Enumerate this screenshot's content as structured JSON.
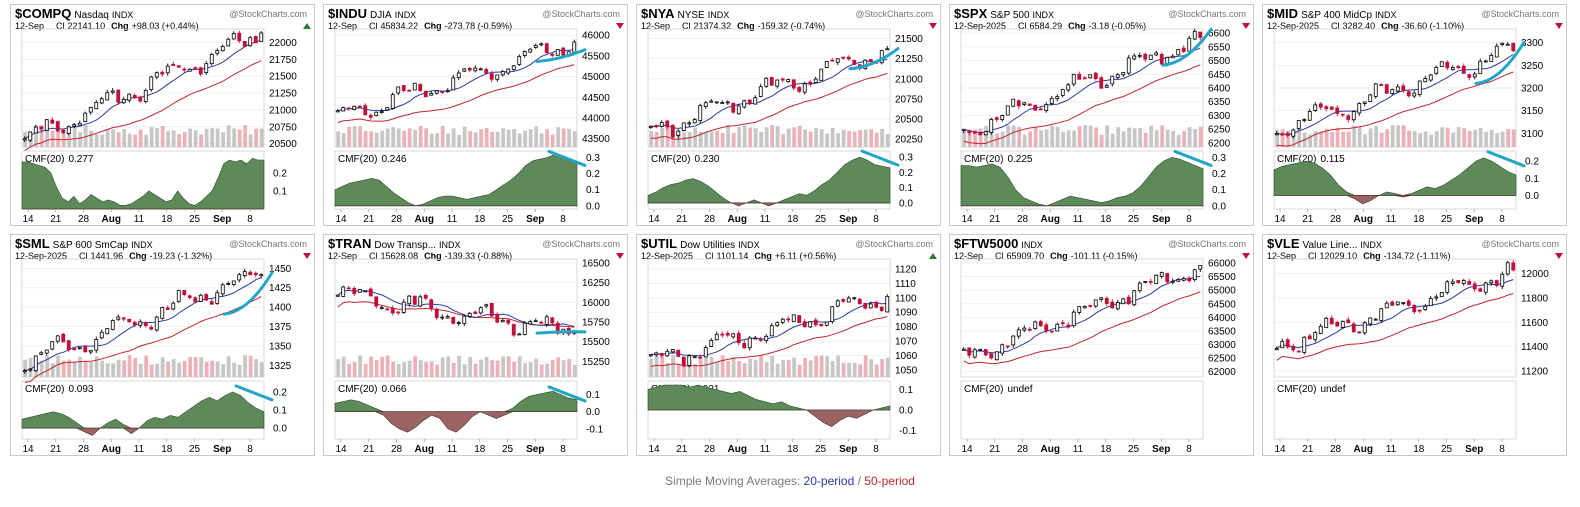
{
  "footer": {
    "prefix": "Simple Moving Averages: ",
    "sma20": "20-period",
    "sep": " / ",
    "sma50": "50-period"
  },
  "colors": {
    "up": "#000000",
    "down": "#c0103a",
    "sma20": "#2b3aa6",
    "sma50": "#c1272d",
    "cmf_pos": "#5e8a5a",
    "cmf_neg": "#9a6464",
    "volume_up": "#bdbdbd",
    "volume_down": "#e8a5ad",
    "annotation": "#22a6c8",
    "marker_down": "#c0103a",
    "marker_up": "#2e7d32"
  },
  "chart_data": [
    {
      "type": "candlestick",
      "symbol": "$COMPQ",
      "name": "Nasdaq",
      "exchange": "INDX",
      "watermark": "@StockCharts.com",
      "date": "12-Sep",
      "close_label": "Cl",
      "close": "22141.10",
      "chg_label": "Chg",
      "chg": "+98.03 (+0.44%)",
      "direction": "up",
      "price_ticks": [
        22000,
        21750,
        21500,
        21250,
        21000,
        20750,
        20500
      ],
      "price_tick_labels": [
        "22000",
        "21750",
        "21500",
        "21250",
        "21000",
        "20750",
        "20500"
      ],
      "ylim": [
        20450,
        22200
      ],
      "x_labels": [
        "14",
        "21",
        "28",
        "Aug",
        "11",
        "18",
        "25",
        "Sep",
        "8"
      ],
      "cmf_label": "CMF(20)",
      "cmf_value": "0.277",
      "cmf_ticks": [
        "0.2",
        "0.1"
      ],
      "cmf_tick_values": [
        0.2,
        0.1
      ],
      "cmf_ylim": [
        0,
        0.32
      ],
      "cmf_series": [
        0.26,
        0.26,
        0.25,
        0.24,
        0.23,
        0.2,
        0.12,
        0.06,
        0.04,
        0.07,
        0.03,
        0.05,
        0.08,
        0.06,
        0.04,
        0.05,
        0.04,
        0.02,
        0.02,
        0.03,
        0.05,
        0.07,
        0.1,
        0.08,
        0.06,
        0.04,
        0.05,
        0.1,
        0.06,
        0.03,
        0.02,
        0.04,
        0.07,
        0.1,
        0.17,
        0.25,
        0.27,
        0.26,
        0.27,
        0.25,
        0.28,
        0.27,
        0.27
      ],
      "price_start": 20550,
      "price_end": 22141,
      "has_annotation": false,
      "show_volume": true
    },
    {
      "type": "candlestick",
      "symbol": "$INDU",
      "name": "DJIA",
      "exchange": "INDX",
      "watermark": "@StockCharts.com",
      "date": "12-Sep",
      "close_label": "Cl",
      "close": "45834.22",
      "chg_label": "Chg",
      "chg": "-273.78 (-0.59%)",
      "direction": "down",
      "price_ticks": [
        46000,
        45500,
        45000,
        44500,
        44000,
        43500
      ],
      "price_tick_labels": [
        "46000",
        "45500",
        "45000",
        "44500",
        "44000",
        "43500"
      ],
      "ylim": [
        43300,
        46150
      ],
      "x_labels": [
        "14",
        "21",
        "28",
        "Aug",
        "11",
        "18",
        "25",
        "Sep",
        "8"
      ],
      "cmf_label": "CMF(20)",
      "cmf_value": "0.246",
      "cmf_ticks": [
        "0.3",
        "0.2",
        "0.1",
        "0.0"
      ],
      "cmf_tick_values": [
        0.3,
        0.2,
        0.1,
        0.0
      ],
      "cmf_ylim": [
        -0.02,
        0.34
      ],
      "cmf_series": [
        0.1,
        0.12,
        0.14,
        0.15,
        0.16,
        0.17,
        0.16,
        0.12,
        0.08,
        0.05,
        0.02,
        0.0,
        0.01,
        0.03,
        0.05,
        0.06,
        0.06,
        0.05,
        0.04,
        0.05,
        0.06,
        0.07,
        0.1,
        0.13,
        0.16,
        0.2,
        0.25,
        0.28,
        0.29,
        0.3,
        0.32,
        0.3,
        0.28,
        0.26
      ],
      "price_start": 44000,
      "price_end": 45834,
      "has_annotation": true,
      "show_volume": true
    },
    {
      "type": "candlestick",
      "symbol": "$NYA",
      "name": "NYSE",
      "exchange": "INDX",
      "watermark": "@StockCharts.com",
      "date": "12-Sep",
      "close_label": "Cl",
      "close": "21374.32",
      "chg_label": "Chg",
      "chg": "-159.32 (-0.74%)",
      "direction": "down",
      "price_ticks": [
        21500,
        21250,
        21000,
        20750,
        20500,
        20250
      ],
      "price_tick_labels": [
        "21500",
        "21250",
        "21000",
        "20750",
        "20500",
        "20250"
      ],
      "ylim": [
        20150,
        21620
      ],
      "x_labels": [
        "14",
        "21",
        "28",
        "Aug",
        "11",
        "18",
        "25",
        "Sep",
        "8"
      ],
      "cmf_label": "CMF(20)",
      "cmf_value": "0.230",
      "cmf_ticks": [
        "0.3",
        "0.2",
        "0.1",
        "0.0"
      ],
      "cmf_tick_values": [
        0.3,
        0.2,
        0.1,
        0.0
      ],
      "cmf_ylim": [
        -0.04,
        0.34
      ],
      "cmf_series": [
        0.05,
        0.07,
        0.1,
        0.12,
        0.13,
        0.15,
        0.16,
        0.14,
        0.11,
        0.07,
        0.03,
        0.0,
        -0.02,
        0.0,
        0.02,
        0.0,
        -0.02,
        0.0,
        0.02,
        0.04,
        0.06,
        0.05,
        0.08,
        0.12,
        0.15,
        0.2,
        0.25,
        0.28,
        0.3,
        0.28,
        0.25,
        0.24,
        0.23
      ],
      "price_start": 20350,
      "price_end": 21374,
      "has_annotation": true,
      "show_volume": true
    },
    {
      "type": "candlestick",
      "symbol": "$SPX",
      "name": "S&P 500",
      "exchange": "INDX",
      "watermark": "@StockCharts.com",
      "date": "12-Sep-2025",
      "close_label": "Cl",
      "close": "6584.29",
      "chg_label": "Chg",
      "chg": "-3.18 (-0.05%)",
      "direction": "down",
      "price_ticks": [
        6600,
        6550,
        6500,
        6450,
        6400,
        6350,
        6300,
        6250,
        6200
      ],
      "price_tick_labels": [
        "6600",
        "6550",
        "6500",
        "6450",
        "6400",
        "6350",
        "6300",
        "6250",
        "6200"
      ],
      "ylim": [
        6185,
        6615
      ],
      "x_labels": [
        "14",
        "21",
        "28",
        "Aug",
        "11",
        "18",
        "25",
        "Sep",
        "8"
      ],
      "cmf_label": "CMF(20)",
      "cmf_value": "0.225",
      "cmf_ticks": [
        "0.3",
        "0.2",
        "0.1",
        "0.0"
      ],
      "cmf_tick_values": [
        0.3,
        0.2,
        0.1,
        0.0
      ],
      "cmf_ylim": [
        -0.02,
        0.34
      ],
      "cmf_series": [
        0.25,
        0.25,
        0.24,
        0.25,
        0.26,
        0.24,
        0.18,
        0.1,
        0.05,
        0.03,
        0.01,
        0.0,
        0.02,
        0.04,
        0.06,
        0.05,
        0.04,
        0.03,
        0.02,
        0.03,
        0.05,
        0.06,
        0.08,
        0.12,
        0.18,
        0.24,
        0.28,
        0.3,
        0.29,
        0.27,
        0.25,
        0.23
      ],
      "price_start": 6240,
      "price_end": 6584,
      "has_annotation": true,
      "show_volume": true
    },
    {
      "type": "candlestick",
      "symbol": "$MID",
      "name": "S&P 400 MidCp",
      "exchange": "INDX",
      "watermark": "@StockCharts.com",
      "date": "12-Sep-2025",
      "close_label": "Cl",
      "close": "3282.40",
      "chg_label": "Chg",
      "chg": "-36.60 (-1.10%)",
      "direction": "down",
      "price_ticks": [
        3300,
        3250,
        3200,
        3150,
        3100
      ],
      "price_tick_labels": [
        "3300",
        "3250",
        "3200",
        "3150",
        "3100"
      ],
      "ylim": [
        3070,
        3330
      ],
      "x_labels": [
        "14",
        "21",
        "28",
        "Aug",
        "11",
        "18",
        "25",
        "Sep",
        "8"
      ],
      "cmf_label": "CMF(20)",
      "cmf_value": "0.115",
      "cmf_ticks": [
        "0.2",
        "0.1",
        "0.0"
      ],
      "cmf_tick_values": [
        0.2,
        0.1,
        0.0
      ],
      "cmf_ylim": [
        -0.08,
        0.26
      ],
      "cmf_series": [
        0.15,
        0.17,
        0.18,
        0.19,
        0.2,
        0.19,
        0.16,
        0.12,
        0.06,
        0.02,
        -0.02,
        -0.05,
        -0.03,
        0.0,
        0.02,
        0.01,
        -0.01,
        0.01,
        0.03,
        0.05,
        0.04,
        0.06,
        0.09,
        0.12,
        0.16,
        0.2,
        0.22,
        0.2,
        0.17,
        0.14,
        0.12
      ],
      "price_start": 3110,
      "price_end": 3282,
      "has_annotation": true,
      "show_volume": true
    },
    {
      "type": "candlestick",
      "symbol": "$SML",
      "name": "S&P 600 SmCap",
      "exchange": "INDX",
      "watermark": "@StockCharts.com",
      "date": "12-Sep-2025",
      "close_label": "Cl",
      "close": "1441.96",
      "chg_label": "Chg",
      "chg": "-19.23 (-1.32%)",
      "direction": "down",
      "price_ticks": [
        1450,
        1425,
        1400,
        1375,
        1350,
        1325
      ],
      "price_tick_labels": [
        "1450",
        "1425",
        "1400",
        "1375",
        "1350",
        "1325"
      ],
      "ylim": [
        1310,
        1462
      ],
      "x_labels": [
        "14",
        "21",
        "28",
        "Aug",
        "11",
        "18",
        "25",
        "Sep",
        "8"
      ],
      "cmf_label": "CMF(20)",
      "cmf_value": "0.093",
      "cmf_ticks": [
        "0.2",
        "0.1",
        "0.0"
      ],
      "cmf_tick_values": [
        0.2,
        0.1,
        0.0
      ],
      "cmf_ylim": [
        -0.06,
        0.26
      ],
      "cmf_series": [
        0.05,
        0.06,
        0.07,
        0.08,
        0.09,
        0.08,
        0.06,
        0.03,
        -0.02,
        -0.04,
        0.0,
        0.03,
        0.05,
        0.02,
        -0.03,
        0.0,
        0.04,
        0.06,
        0.05,
        0.07,
        0.06,
        0.09,
        0.12,
        0.15,
        0.17,
        0.15,
        0.18,
        0.2,
        0.18,
        0.14,
        0.11,
        0.09
      ],
      "price_start": 1330,
      "price_end": 1442,
      "has_annotation": true,
      "show_volume": true
    },
    {
      "type": "candlestick",
      "symbol": "$TRAN",
      "name": "Dow Transp...",
      "exchange": "INDX",
      "watermark": "@StockCharts.com",
      "date": "12-Sep",
      "close_label": "Cl",
      "close": "15628.08",
      "chg_label": "Chg",
      "chg": "-139.33 (-0.88%)",
      "direction": "down",
      "price_ticks": [
        16500,
        16250,
        16000,
        15750,
        15500,
        15250
      ],
      "price_tick_labels": [
        "16500",
        "16250",
        "16000",
        "15750",
        "15500",
        "15250"
      ],
      "ylim": [
        15050,
        16550
      ],
      "x_labels": [
        "14",
        "21",
        "28",
        "Aug",
        "11",
        "18",
        "25",
        "Sep",
        "8"
      ],
      "cmf_label": "CMF(20)",
      "cmf_value": "0.066",
      "cmf_ticks": [
        "0.1",
        "0.0",
        "-0.1"
      ],
      "cmf_tick_values": [
        0.1,
        0.0,
        -0.1
      ],
      "cmf_ylim": [
        -0.16,
        0.18
      ],
      "cmf_series": [
        0.05,
        0.06,
        0.07,
        0.06,
        0.04,
        0.02,
        -0.02,
        -0.07,
        -0.1,
        -0.12,
        -0.09,
        -0.05,
        -0.02,
        -0.04,
        -0.1,
        -0.12,
        -0.08,
        -0.03,
        0.0,
        -0.02,
        -0.04,
        -0.02,
        0.02,
        0.06,
        0.09,
        0.1,
        0.11,
        0.12,
        0.1,
        0.08,
        0.07
      ],
      "price_start": 16100,
      "price_end": 15628,
      "has_annotation": true,
      "show_volume": true
    },
    {
      "type": "candlestick",
      "symbol": "$UTIL",
      "name": "Dow Utilities",
      "exchange": "INDX",
      "watermark": "@StockCharts.com",
      "date": "12-Sep-2025",
      "close_label": "Cl",
      "close": "1101.14",
      "chg_label": "Chg",
      "chg": "+6.11 (+0.56%)",
      "direction": "up",
      "price_ticks": [
        1120,
        1110,
        1100,
        1090,
        1080,
        1070,
        1060,
        1050
      ],
      "price_tick_labels": [
        "1120",
        "1110",
        "1100",
        "1090",
        "1080",
        "1070",
        "1060",
        "1050"
      ],
      "ylim": [
        1045,
        1127
      ],
      "x_labels": [
        "14",
        "21",
        "28",
        "Aug",
        "11",
        "18",
        "25",
        "Sep",
        "8"
      ],
      "cmf_label": "CMF(20)",
      "cmf_value": "0.021",
      "cmf_ticks": [
        "0.1",
        "0.0",
        "-0.1"
      ],
      "cmf_tick_values": [
        0.1,
        0.0,
        -0.1
      ],
      "cmf_ylim": [
        -0.14,
        0.14
      ],
      "cmf_series": [
        0.1,
        0.11,
        0.12,
        0.12,
        0.12,
        0.11,
        0.12,
        0.11,
        0.1,
        0.09,
        0.08,
        0.09,
        0.07,
        0.05,
        0.04,
        0.03,
        0.04,
        0.02,
        0.01,
        0.0,
        -0.03,
        -0.06,
        -0.08,
        -0.05,
        -0.03,
        -0.04,
        -0.02,
        0.0,
        0.01,
        0.02
      ],
      "price_start": 1055,
      "price_end": 1101,
      "has_annotation": false,
      "show_volume": true
    },
    {
      "type": "candlestick",
      "symbol": "$FTW5000",
      "name": "",
      "exchange": "INDX",
      "watermark": "@StockCharts.com",
      "date": "12-Sep",
      "close_label": "Cl",
      "close": "65909.70",
      "chg_label": "Chg",
      "chg": "-101.11 (-0.15%)",
      "direction": "down",
      "price_ticks": [
        66000,
        65500,
        65000,
        64500,
        64000,
        63500,
        63000,
        62500,
        62000
      ],
      "price_tick_labels": [
        "66000",
        "65500",
        "65000",
        "64500",
        "64000",
        "63500",
        "63000",
        "62500",
        "62000"
      ],
      "ylim": [
        61800,
        66150
      ],
      "x_labels": [
        "14",
        "21",
        "28",
        "Aug",
        "11",
        "18",
        "25",
        "Sep",
        "8"
      ],
      "cmf_label": "CMF(20)",
      "cmf_value": "undef",
      "cmf_ticks": [],
      "cmf_tick_values": [],
      "cmf_ylim": [
        0,
        1
      ],
      "cmf_series": [],
      "price_start": 62500,
      "price_end": 65910,
      "has_annotation": false,
      "show_volume": false
    },
    {
      "type": "candlestick",
      "symbol": "$VLE",
      "name": "Value Line...",
      "exchange": "INDX",
      "watermark": "@StockCharts.com",
      "date": "12-Sep",
      "close_label": "Cl",
      "close": "12029.10",
      "chg_label": "Chg",
      "chg": "-134.72 (-1.11%)",
      "direction": "down",
      "price_ticks": [
        12000,
        11800,
        11600,
        11400,
        11200
      ],
      "price_tick_labels": [
        "12000",
        "11800",
        "11600",
        "11400",
        "11200"
      ],
      "ylim": [
        11150,
        12120
      ],
      "x_labels": [
        "14",
        "21",
        "28",
        "Aug",
        "11",
        "18",
        "25",
        "Sep",
        "8"
      ],
      "cmf_label": "CMF(20)",
      "cmf_value": "undef",
      "cmf_ticks": [],
      "cmf_tick_values": [],
      "cmf_ylim": [
        0,
        1
      ],
      "cmf_series": [],
      "price_start": 11400,
      "price_end": 12029,
      "has_annotation": false,
      "show_volume": false
    }
  ]
}
